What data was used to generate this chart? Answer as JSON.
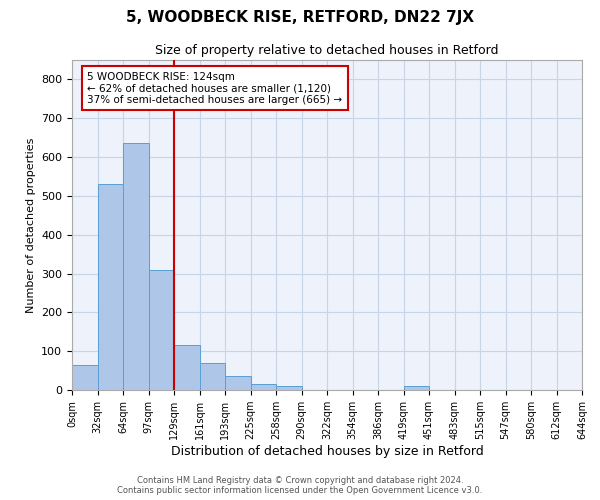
{
  "title": "5, WOODBECK RISE, RETFORD, DN22 7JX",
  "subtitle": "Size of property relative to detached houses in Retford",
  "xlabel": "Distribution of detached houses by size in Retford",
  "ylabel": "Number of detached properties",
  "bin_labels": [
    "0sqm",
    "32sqm",
    "64sqm",
    "97sqm",
    "129sqm",
    "161sqm",
    "193sqm",
    "225sqm",
    "258sqm",
    "290sqm",
    "322sqm",
    "354sqm",
    "386sqm",
    "419sqm",
    "451sqm",
    "483sqm",
    "515sqm",
    "547sqm",
    "580sqm",
    "612sqm",
    "644sqm"
  ],
  "bar_heights": [
    65,
    530,
    635,
    310,
    115,
    70,
    35,
    15,
    10,
    0,
    0,
    0,
    0,
    10,
    0,
    0,
    0,
    0,
    0,
    0
  ],
  "bar_color": "#aec6e8",
  "bar_edge_color": "#5a9fd4",
  "marker_line_color": "#cc0000",
  "annotation_text": "5 WOODBECK RISE: 124sqm\n← 62% of detached houses are smaller (1,120)\n37% of semi-detached houses are larger (665) →",
  "annotation_box_color": "#ffffff",
  "annotation_box_edge": "#cc0000",
  "footnote": "Contains HM Land Registry data © Crown copyright and database right 2024.\nContains public sector information licensed under the Open Government Licence v3.0.",
  "ylim": [
    0,
    850
  ],
  "yticks": [
    0,
    100,
    200,
    300,
    400,
    500,
    600,
    700,
    800
  ],
  "grid_color": "#c8d4e8",
  "bg_color": "#edf2fb"
}
